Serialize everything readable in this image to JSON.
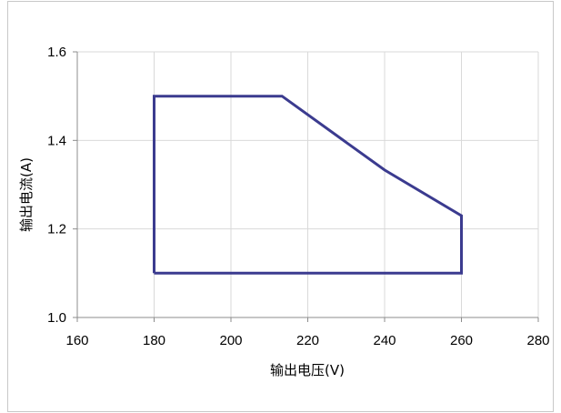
{
  "chart_data": {
    "type": "line",
    "title": "",
    "xlabel": "输出电压(V)",
    "ylabel": "输出电流(A)",
    "xlim": [
      160,
      280
    ],
    "ylim": [
      1.0,
      1.6
    ],
    "x_ticks": [
      160,
      180,
      200,
      220,
      240,
      260,
      280
    ],
    "x_tick_labels": [
      "160",
      "180",
      "200",
      "220",
      "240",
      "260",
      "280"
    ],
    "y_ticks": [
      1.0,
      1.2,
      1.4,
      1.6
    ],
    "y_tick_labels": [
      "1.0",
      "1.2",
      "1.4",
      "1.6"
    ],
    "grid": true,
    "legend": "none",
    "series": [
      {
        "color": "#3b3b8f",
        "x": [
          180,
          180,
          213.3,
          240,
          260,
          260,
          180
        ],
        "y": [
          1.1,
          1.5,
          1.5,
          1.333,
          1.23,
          1.1,
          1.1
        ]
      }
    ]
  }
}
